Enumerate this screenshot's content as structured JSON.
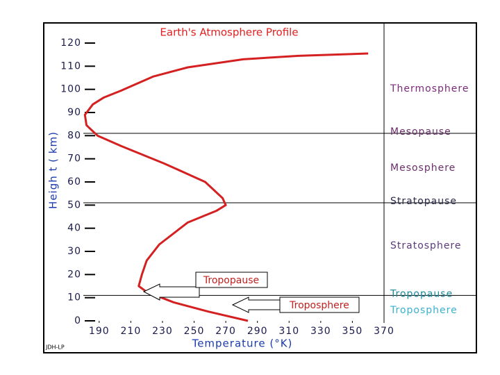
{
  "chart_data": {
    "type": "line",
    "title": "Earth's Atmosphere Profile",
    "xlabel": "Temperature (°K)",
    "ylabel": "Heigh t ( km)",
    "credit": "JDH-LP",
    "color": "#d42020",
    "x": [
      284,
      259,
      237,
      220,
      215,
      217,
      220,
      228,
      246,
      264,
      270,
      268,
      257,
      231,
      204,
      189,
      182,
      181,
      186,
      193,
      204,
      224,
      246,
      281,
      316,
      360
    ],
    "values": [
      0,
      4,
      8,
      12.5,
      15,
      20,
      26,
      33,
      42.5,
      47.5,
      50,
      53,
      60,
      68,
      75.5,
      80,
      84.5,
      89,
      93.5,
      96.5,
      99.5,
      105.5,
      109.5,
      113,
      114.5,
      115.5
    ],
    "xlim": [
      180,
      370
    ],
    "xticks": [
      190,
      210,
      230,
      250,
      270,
      290,
      310,
      330,
      350,
      370
    ],
    "ylim": [
      0,
      120
    ],
    "yticks": [
      0,
      10,
      20,
      30,
      40,
      50,
      60,
      70,
      80,
      90,
      100,
      110,
      120
    ],
    "regions": [
      {
        "label": "Thermosphere",
        "color": "#7a2a7a"
      },
      {
        "label": "Mesopause",
        "color": "#6b2e6b",
        "height": 81
      },
      {
        "label": "Mesosphere",
        "color": "#6b2e6b"
      },
      {
        "label": "Stratopause",
        "color": "#2a2a4a",
        "height": 51
      },
      {
        "label": "Stratosphere",
        "color": "#5a3a7a"
      },
      {
        "label": "Tropopause",
        "color": "#1a8a9a",
        "height": 11
      },
      {
        "label": "Troposphere",
        "color": "#3ab0d0"
      }
    ],
    "callouts": [
      "Tropopause",
      "Troposphere"
    ]
  }
}
